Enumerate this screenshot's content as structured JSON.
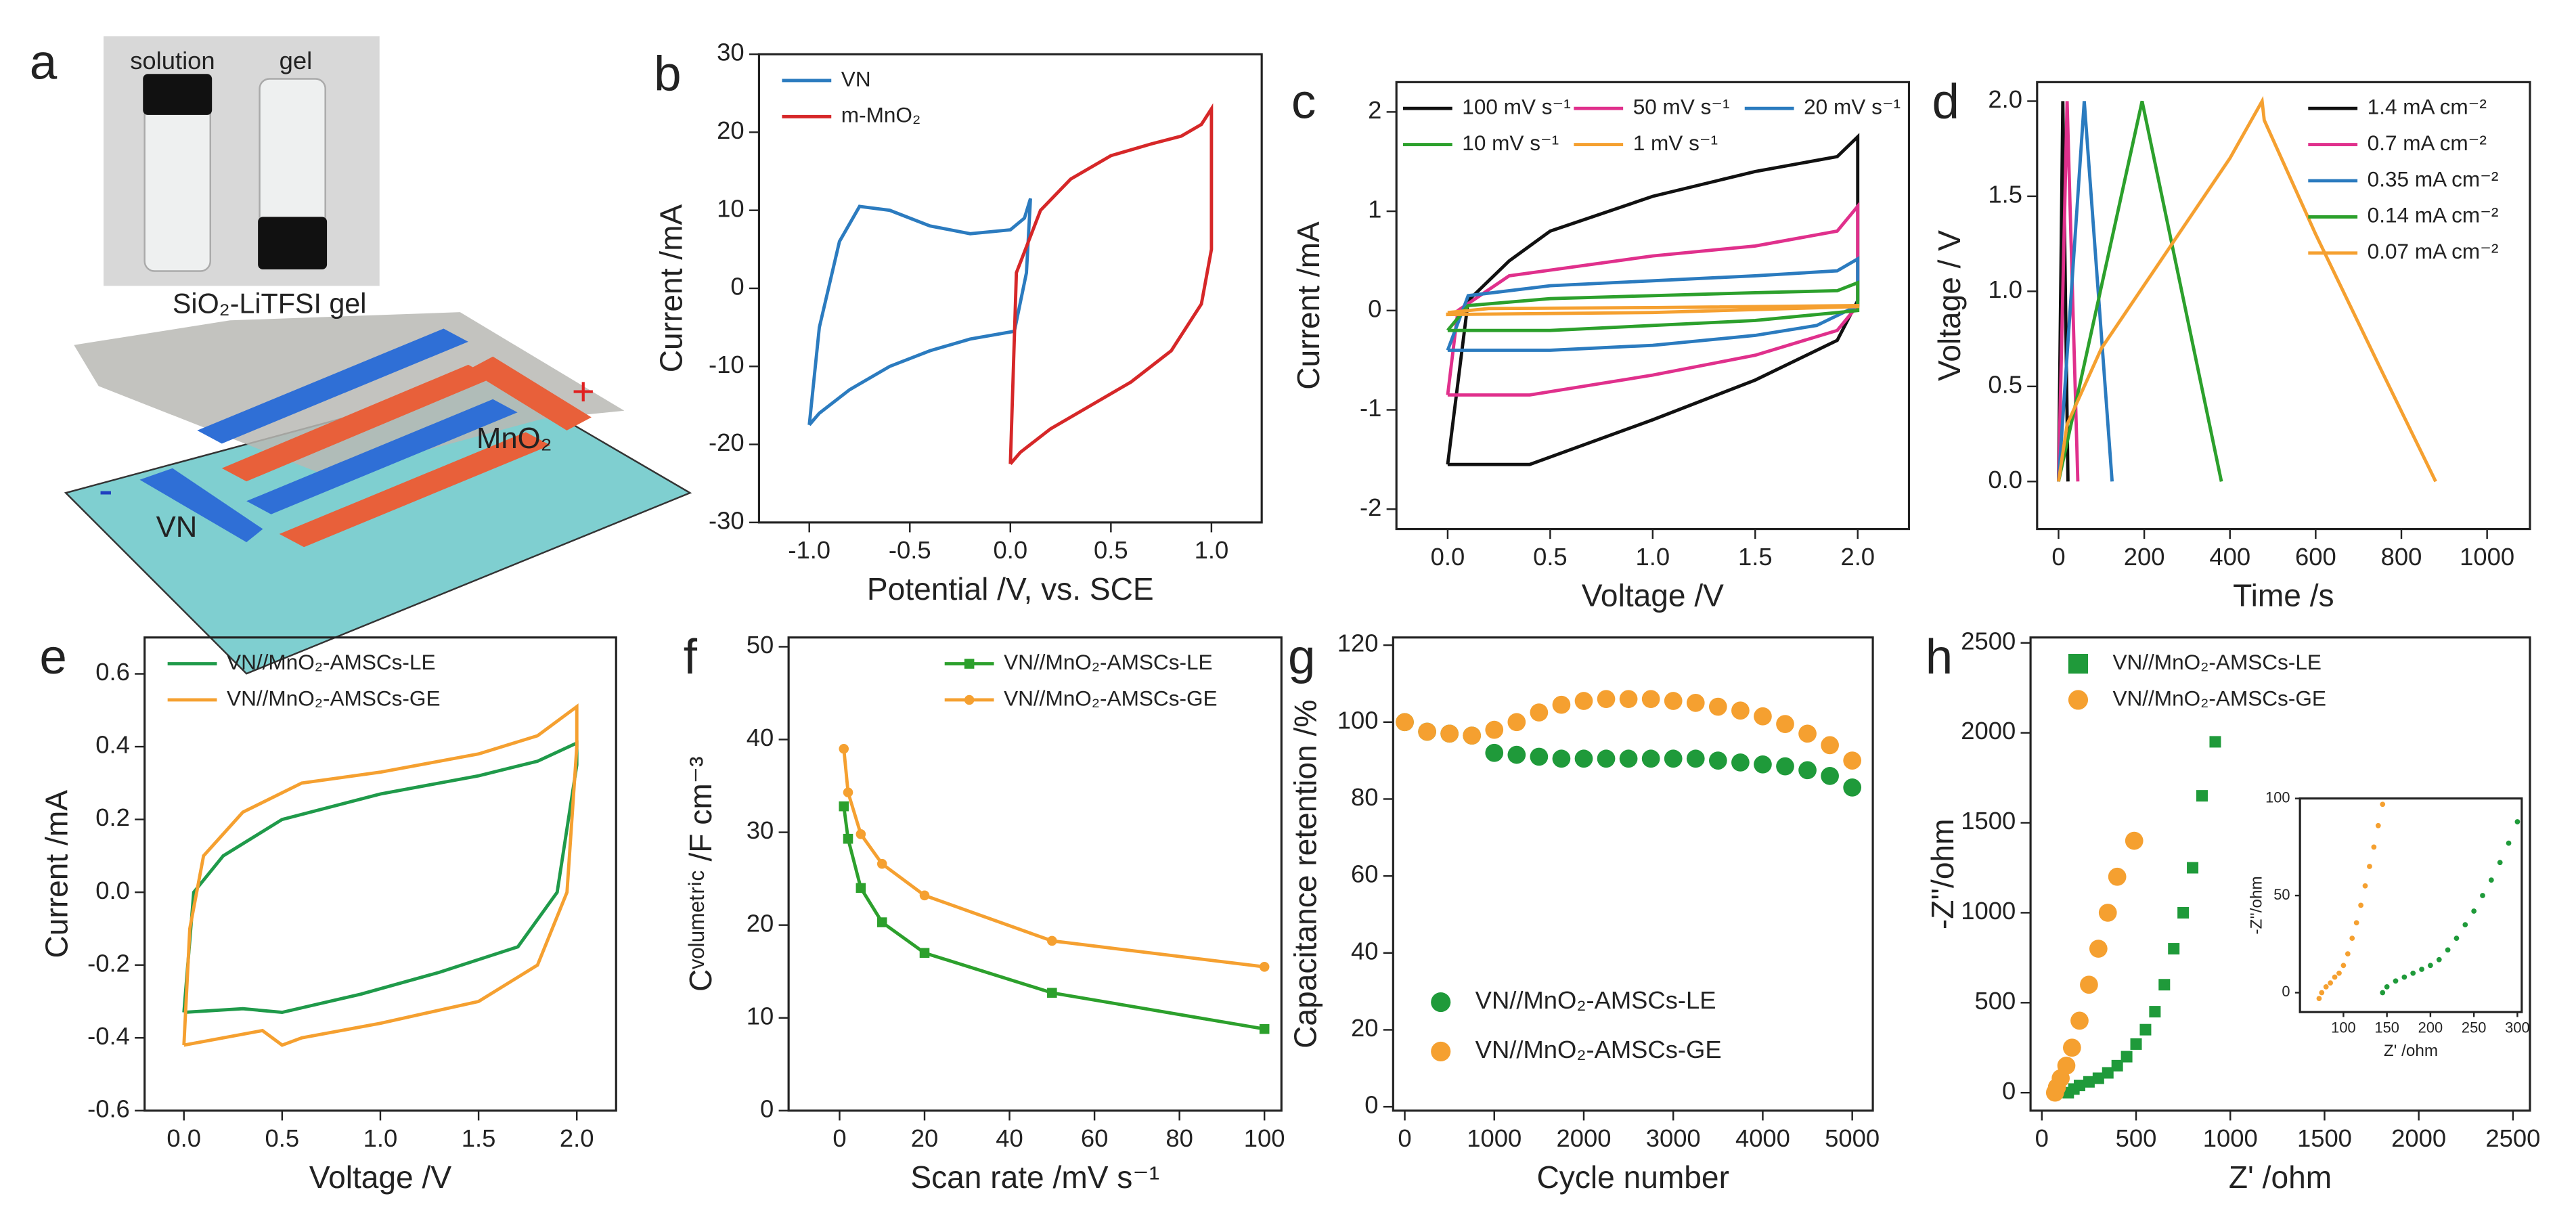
{
  "panel_a": {
    "label": "a",
    "photo_labels": [
      "solution",
      "gel"
    ],
    "gel_label": "SiO₂-LiTFSI gel",
    "positive_label": "MnO₂",
    "positive_sign": "+",
    "negative_label": "VN",
    "negative_sign": "-"
  },
  "chart_data": [
    {
      "type": "line",
      "label": "b",
      "xlabel": "Potential /V, vs. SCE",
      "ylabel": "Current /mA",
      "xlim": [
        -1.25,
        1.25
      ],
      "ylim": [
        -30,
        30
      ],
      "xticks": [
        {
          "value": -1,
          "label": "-1.0"
        },
        -0.5,
        {
          "value": 0,
          "label": "0.0"
        },
        0.5,
        {
          "value": 1,
          "label": "1.0"
        }
      ],
      "yticks": [
        -30,
        -20,
        -10,
        0,
        10,
        20,
        30
      ],
      "legend": "upper left",
      "series": [
        {
          "name": "VN",
          "color": "#2b7bbf",
          "x": [
            -1,
            -0.95,
            -0.85,
            -0.75,
            -0.6,
            -0.4,
            -0.2,
            0,
            0.07,
            0.1,
            0.08,
            0.02,
            -0.2,
            -0.4,
            -0.6,
            -0.8,
            -0.95,
            -1
          ],
          "values": [
            -17.5,
            -5,
            6,
            10.5,
            10,
            8,
            7,
            7.5,
            9,
            11.5,
            2,
            -5.5,
            -6.5,
            -8,
            -10,
            -13,
            -16,
            -17.5
          ]
        },
        {
          "name": "m-MnO₂",
          "color": "#d62728",
          "x": [
            0,
            0.03,
            0.15,
            0.3,
            0.5,
            0.7,
            0.85,
            0.95,
            1,
            1,
            0.95,
            0.8,
            0.6,
            0.4,
            0.2,
            0.05,
            0
          ],
          "values": [
            -22.5,
            2,
            10,
            14,
            17,
            18.5,
            19.5,
            21,
            23,
            5,
            -2,
            -8,
            -12,
            -15,
            -18,
            -21,
            -22.5
          ]
        }
      ]
    },
    {
      "type": "line",
      "label": "c",
      "xlabel": "Voltage /V",
      "ylabel": "Current /mA",
      "xlim": [
        -0.25,
        2.25
      ],
      "ylim": [
        -2.2,
        2.3
      ],
      "xticks": [
        {
          "value": 0,
          "label": "0.0"
        },
        0.5,
        {
          "value": 1,
          "label": "1.0"
        },
        1.5,
        {
          "value": 2,
          "label": "2.0"
        }
      ],
      "yticks": [
        -2,
        -1,
        0,
        1,
        2
      ],
      "legend": "upper left",
      "legend_columns": 3,
      "series": [
        {
          "name": "100 mV s⁻¹",
          "color": "#111111",
          "x": [
            0,
            0.1,
            0.3,
            0.5,
            1,
            1.5,
            1.9,
            2,
            2,
            1.9,
            1.5,
            1,
            0.4,
            0
          ],
          "values": [
            -1.55,
            0.1,
            0.5,
            0.8,
            1.15,
            1.4,
            1.55,
            1.75,
            0.1,
            -0.3,
            -0.7,
            -1.1,
            -1.55,
            -1.55
          ]
        },
        {
          "name": "50 mV s⁻¹",
          "color": "#e0308c",
          "x": [
            0,
            0.05,
            0.3,
            1,
            1.5,
            1.9,
            2,
            2,
            1.9,
            1.5,
            1,
            0.4,
            0
          ],
          "values": [
            -0.85,
            0,
            0.35,
            0.55,
            0.65,
            0.8,
            1.05,
            0.05,
            -0.2,
            -0.45,
            -0.65,
            -0.85,
            -0.85
          ]
        },
        {
          "name": "20 mV s⁻¹",
          "color": "#2b7bbf",
          "x": [
            0,
            0.1,
            0.5,
            1,
            1.5,
            1.9,
            2,
            2,
            1.8,
            1.5,
            1,
            0.5,
            0
          ],
          "values": [
            -0.4,
            0.15,
            0.25,
            0.3,
            0.35,
            0.4,
            0.52,
            0.05,
            -0.15,
            -0.25,
            -0.35,
            -0.4,
            -0.4
          ]
        },
        {
          "name": "10 mV s⁻¹",
          "color": "#2ca02c",
          "x": [
            0,
            0.1,
            0.5,
            1,
            1.5,
            1.9,
            2,
            2,
            1.5,
            1,
            0.5,
            0
          ],
          "values": [
            -0.2,
            0.05,
            0.12,
            0.15,
            0.18,
            0.2,
            0.28,
            0,
            -0.1,
            -0.15,
            -0.2,
            -0.2
          ]
        },
        {
          "name": "1 mV s⁻¹",
          "color": "#f5a030",
          "x": [
            0,
            0.2,
            1,
            2,
            2,
            1,
            0,
            0
          ],
          "values": [
            -0.02,
            0.02,
            0.03,
            0.05,
            0.04,
            -0.02,
            -0.04,
            -0.02
          ]
        }
      ]
    },
    {
      "type": "line",
      "label": "d",
      "xlabel": "Time /s",
      "ylabel": "Voltage / V",
      "xlim": [
        -50,
        1100
      ],
      "ylim": [
        -0.25,
        2.1
      ],
      "xticks": [
        0,
        200,
        400,
        600,
        800,
        1000
      ],
      "yticks": [
        {
          "value": 0,
          "label": "0.0"
        },
        0.5,
        {
          "value": 1,
          "label": "1.0"
        },
        1.5,
        {
          "value": 2,
          "label": "2.0"
        }
      ],
      "legend": "upper right",
      "series": [
        {
          "name": "1.4 mA cm⁻²",
          "color": "#111111",
          "x": [
            0,
            10,
            22
          ],
          "values": [
            0,
            2,
            0
          ]
        },
        {
          "name": "0.7 mA cm⁻²",
          "color": "#e0308c",
          "x": [
            0,
            20,
            45
          ],
          "values": [
            0,
            2,
            0
          ]
        },
        {
          "name": "0.35 mA cm⁻²",
          "color": "#2b7bbf",
          "x": [
            0,
            60,
            125
          ],
          "values": [
            0,
            2,
            0
          ]
        },
        {
          "name": "0.14 mA cm⁻²",
          "color": "#2ca02c",
          "x": [
            0,
            195,
            380
          ],
          "values": [
            0,
            2,
            0
          ]
        },
        {
          "name": "0.07 mA cm⁻²",
          "color": "#f5a030",
          "x": [
            0,
            20,
            100,
            250,
            400,
            475,
            480,
            600,
            750,
            880
          ],
          "values": [
            0,
            0.3,
            0.7,
            1.2,
            1.7,
            2,
            1.9,
            1.3,
            0.6,
            0
          ]
        }
      ]
    },
    {
      "type": "line",
      "label": "e",
      "xlabel": "Voltage /V",
      "ylabel": "Current /mA",
      "xlim": [
        -0.2,
        2.2
      ],
      "ylim": [
        -0.6,
        0.7
      ],
      "xticks": [
        {
          "value": 0,
          "label": "0.0"
        },
        0.5,
        {
          "value": 1,
          "label": "1.0"
        },
        1.5,
        {
          "value": 2,
          "label": "2.0"
        }
      ],
      "yticks": [
        -0.6,
        -0.4,
        -0.2,
        {
          "value": 0,
          "label": "0.0"
        },
        0.2,
        0.4,
        0.6
      ],
      "legend": "upper left",
      "series": [
        {
          "name": "VN//MnO₂-AMSCs-LE",
          "color": "#1f9a4a",
          "x": [
            0,
            0.05,
            0.2,
            0.5,
            1,
            1.5,
            1.8,
            2,
            2,
            1.9,
            1.7,
            1.3,
            0.9,
            0.5,
            0.3,
            0
          ],
          "values": [
            -0.33,
            0,
            0.1,
            0.2,
            0.27,
            0.32,
            0.36,
            0.41,
            0.35,
            0,
            -0.15,
            -0.22,
            -0.28,
            -0.33,
            -0.32,
            -0.33
          ]
        },
        {
          "name": "VN//MnO₂-AMSCs-GE",
          "color": "#f5a030",
          "x": [
            0,
            0.03,
            0.1,
            0.3,
            0.6,
            1,
            1.5,
            1.8,
            2,
            2,
            1.95,
            1.8,
            1.5,
            1,
            0.6,
            0.5,
            0.4,
            0.2,
            0
          ],
          "values": [
            -0.42,
            -0.1,
            0.1,
            0.22,
            0.3,
            0.33,
            0.38,
            0.43,
            0.51,
            0.4,
            0,
            -0.2,
            -0.3,
            -0.36,
            -0.4,
            -0.42,
            -0.38,
            -0.4,
            -0.42
          ]
        }
      ]
    },
    {
      "type": "line",
      "label": "f",
      "xlabel": "Scan rate /mV s⁻¹",
      "ylabel": "Cᵛᵒˡᵘᵐᵉᵗʳⁱᶜ /F cm⁻³",
      "xlim": [
        -12,
        104
      ],
      "ylim": [
        0,
        51
      ],
      "xticks": [
        0,
        20,
        40,
        60,
        80,
        100
      ],
      "yticks": [
        0,
        10,
        20,
        30,
        40,
        50
      ],
      "legend": "upper right",
      "series": [
        {
          "name": "VN//MnO₂-AMSCs-LE",
          "color": "#2ca02c",
          "marker": "square",
          "x": [
            1,
            2,
            5,
            10,
            20,
            50,
            100
          ],
          "values": [
            32.8,
            29.3,
            24,
            20.3,
            17,
            12.7,
            8.8
          ]
        },
        {
          "name": "VN//MnO₂-AMSCs-GE",
          "color": "#f5a030",
          "marker": "circle",
          "x": [
            1,
            2,
            5,
            10,
            20,
            50,
            100
          ],
          "values": [
            39,
            34.3,
            29.8,
            26.6,
            23.2,
            18.3,
            15.5
          ]
        }
      ]
    },
    {
      "type": "scatter",
      "label": "g",
      "xlabel": "Cycle number",
      "ylabel": "Capacitance retention /%",
      "xlim": [
        -130,
        5230
      ],
      "ylim": [
        -1,
        122
      ],
      "xticks": [
        0,
        1000,
        2000,
        3000,
        4000,
        5000
      ],
      "yticks": [
        0,
        20,
        40,
        60,
        80,
        100,
        120
      ],
      "legend": "lower left",
      "series": [
        {
          "name": "VN//MnO₂-AMSCs-LE",
          "color": "#1f9a3a",
          "marker": "circle",
          "x": [
            0,
            250,
            500,
            750,
            1000,
            1250,
            1500,
            1750,
            2000,
            2250,
            2500,
            2750,
            3000,
            3250,
            3500,
            3750,
            4000,
            4250,
            4500,
            4750,
            5000
          ],
          "values": [
            100,
            97.5,
            97,
            96.5,
            92,
            91.5,
            91,
            90.5,
            90.5,
            90.5,
            90.5,
            90.5,
            90.5,
            90.5,
            90,
            89.5,
            89,
            88.5,
            87.5,
            86,
            83
          ]
        },
        {
          "name": "VN//MnO₂-AMSCs-GE",
          "color": "#f5a030",
          "marker": "circle",
          "x": [
            0,
            250,
            500,
            750,
            1000,
            1250,
            1500,
            1750,
            2000,
            2250,
            2500,
            2750,
            3000,
            3250,
            3500,
            3750,
            4000,
            4250,
            4500,
            4750,
            5000
          ],
          "values": [
            100,
            97.5,
            97,
            96.5,
            98,
            100,
            102.5,
            104.5,
            105.5,
            106,
            106,
            106,
            105.5,
            105,
            104,
            103,
            101.5,
            99.5,
            97,
            94,
            90
          ]
        }
      ]
    },
    {
      "type": "scatter",
      "label": "h",
      "xlabel": "Z' /ohm",
      "ylabel": "-Z''/ohm",
      "xlim": [
        -60,
        2590
      ],
      "ylim": [
        -100,
        2530
      ],
      "xticks": [
        0,
        500,
        1000,
        1500,
        2000,
        2500
      ],
      "yticks": [
        0,
        500,
        1000,
        1500,
        2000,
        2500
      ],
      "legend": "upper left",
      "series": [
        {
          "name": "VN//MnO₂-AMSCs-LE",
          "color": "#1f9a3a",
          "marker": "square",
          "x": [
            140,
            170,
            200,
            250,
            300,
            350,
            400,
            450,
            500,
            550,
            600,
            650,
            700,
            750,
            800,
            850,
            920
          ],
          "values": [
            0,
            20,
            40,
            60,
            80,
            110,
            150,
            200,
            270,
            350,
            450,
            600,
            800,
            1000,
            1250,
            1650,
            1950
          ]
        },
        {
          "name": "VN//MnO₂-AMSCs-GE",
          "color": "#f5a030",
          "marker": "circle",
          "x": [
            70,
            80,
            100,
            130,
            160,
            200,
            250,
            300,
            350,
            400,
            490
          ],
          "values": [
            0,
            30,
            80,
            150,
            250,
            400,
            600,
            800,
            1000,
            1200,
            1400
          ]
        }
      ],
      "inset": {
        "xlabel": "Z' /ohm",
        "ylabel": "-Z''/ohm",
        "xlim": [
          50,
          305
        ],
        "ylim": [
          -10,
          100
        ],
        "xticks": [
          100,
          150,
          200,
          250,
          300
        ],
        "yticks": [
          0,
          50,
          100
        ],
        "series": [
          {
            "color": "#1f9a3a",
            "x": [
              145,
              150,
              160,
              170,
              180,
              190,
              200,
              210,
              220,
              230,
              240,
              250,
              260,
              270,
              280,
              290,
              300
            ],
            "values": [
              0,
              3,
              6,
              8,
              10,
              12,
              14,
              17,
              22,
              28,
              35,
              42,
              50,
              58,
              67,
              77,
              88
            ]
          },
          {
            "color": "#f5a030",
            "x": [
              72,
              75,
              80,
              85,
              90,
              95,
              100,
              105,
              110,
              115,
              120,
              125,
              130,
              135,
              140,
              145
            ],
            "values": [
              -3,
              0,
              3,
              5,
              8,
              10,
              14,
              20,
              28,
              36,
              45,
              55,
              65,
              75,
              86,
              97
            ]
          }
        ]
      }
    }
  ]
}
